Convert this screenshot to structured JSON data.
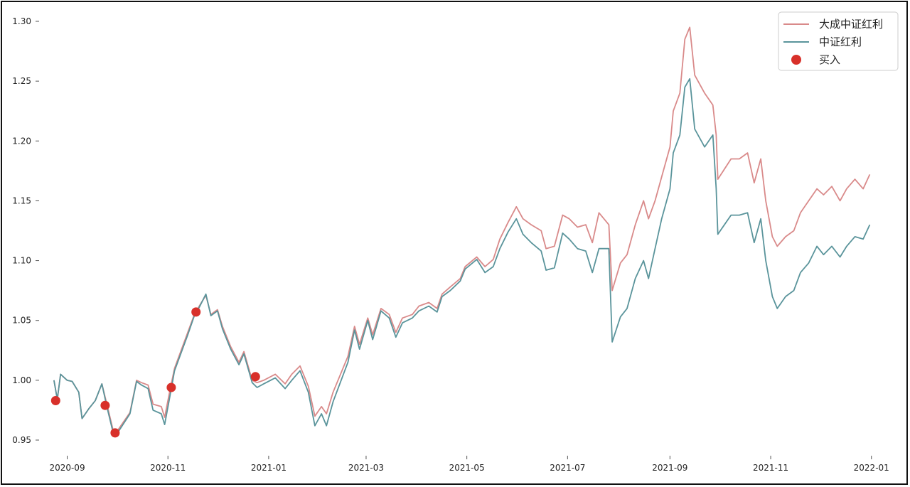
{
  "chart_data": {
    "type": "line",
    "title": "",
    "xlabel": "",
    "ylabel": "",
    "ylim": [
      0.94,
      1.3
    ],
    "xlim": [
      "2020-08-18",
      "2022-01-08"
    ],
    "grid": false,
    "legend_position": "top-right",
    "x_ticks": [
      "2020-09",
      "2020-11",
      "2021-01",
      "2021-03",
      "2021-05",
      "2021-07",
      "2021-09",
      "2021-11",
      "2022-01"
    ],
    "y_ticks": [
      "0.95",
      "1.00",
      "1.05",
      "1.10",
      "1.15",
      "1.20",
      "1.25",
      "1.30"
    ],
    "colors": {
      "fund": "#d98a8a",
      "index": "#5a949b",
      "buy": "#d8302a"
    },
    "series": [
      {
        "name": "大成中证红利",
        "type": "line",
        "points": [
          [
            "2020-08-24",
            1.0
          ],
          [
            "2020-08-26",
            0.984
          ],
          [
            "2020-08-28",
            1.005
          ],
          [
            "2020-09-01",
            1.0
          ],
          [
            "2020-09-04",
            0.999
          ],
          [
            "2020-09-08",
            0.99
          ],
          [
            "2020-09-10",
            0.968
          ],
          [
            "2020-09-14",
            0.976
          ],
          [
            "2020-09-18",
            0.983
          ],
          [
            "2020-09-22",
            0.997
          ],
          [
            "2020-09-25",
            0.98
          ],
          [
            "2020-09-29",
            0.957
          ],
          [
            "2020-10-01",
            0.957
          ],
          [
            "2020-10-09",
            0.973
          ],
          [
            "2020-10-13",
            1.0
          ],
          [
            "2020-10-16",
            0.998
          ],
          [
            "2020-10-20",
            0.996
          ],
          [
            "2020-10-23",
            0.98
          ],
          [
            "2020-10-28",
            0.978
          ],
          [
            "2020-10-30",
            0.969
          ],
          [
            "2020-11-02",
            0.99
          ],
          [
            "2020-11-05",
            1.01
          ],
          [
            "2020-11-09",
            1.025
          ],
          [
            "2020-11-13",
            1.04
          ],
          [
            "2020-11-17",
            1.055
          ],
          [
            "2020-11-20",
            1.062
          ],
          [
            "2020-11-24",
            1.071
          ],
          [
            "2020-11-27",
            1.055
          ],
          [
            "2020-12-01",
            1.059
          ],
          [
            "2020-12-04",
            1.045
          ],
          [
            "2020-12-09",
            1.028
          ],
          [
            "2020-12-14",
            1.015
          ],
          [
            "2020-12-17",
            1.024
          ],
          [
            "2020-12-22",
            1.0
          ],
          [
            "2020-12-25",
            0.998
          ],
          [
            "2020-12-29",
            1.0
          ],
          [
            "2021-01-05",
            1.005
          ],
          [
            "2021-01-11",
            0.997
          ],
          [
            "2021-01-15",
            1.005
          ],
          [
            "2021-01-20",
            1.012
          ],
          [
            "2021-01-25",
            0.995
          ],
          [
            "2021-01-29",
            0.97
          ],
          [
            "2021-02-02",
            0.978
          ],
          [
            "2021-02-05",
            0.972
          ],
          [
            "2021-02-09",
            0.99
          ],
          [
            "2021-02-18",
            1.02
          ],
          [
            "2021-02-22",
            1.045
          ],
          [
            "2021-02-25",
            1.03
          ],
          [
            "2021-03-02",
            1.052
          ],
          [
            "2021-03-05",
            1.038
          ],
          [
            "2021-03-10",
            1.06
          ],
          [
            "2021-03-15",
            1.055
          ],
          [
            "2021-03-19",
            1.04
          ],
          [
            "2021-03-23",
            1.052
          ],
          [
            "2021-03-29",
            1.055
          ],
          [
            "2021-04-02",
            1.062
          ],
          [
            "2021-04-08",
            1.065
          ],
          [
            "2021-04-13",
            1.06
          ],
          [
            "2021-04-16",
            1.072
          ],
          [
            "2021-04-21",
            1.078
          ],
          [
            "2021-04-27",
            1.085
          ],
          [
            "2021-04-30",
            1.095
          ],
          [
            "2021-05-07",
            1.103
          ],
          [
            "2021-05-12",
            1.095
          ],
          [
            "2021-05-17",
            1.101
          ],
          [
            "2021-05-21",
            1.118
          ],
          [
            "2021-05-26",
            1.132
          ],
          [
            "2021-05-31",
            1.145
          ],
          [
            "2021-06-04",
            1.135
          ],
          [
            "2021-06-09",
            1.13
          ],
          [
            "2021-06-15",
            1.125
          ],
          [
            "2021-06-18",
            1.11
          ],
          [
            "2021-06-23",
            1.112
          ],
          [
            "2021-06-28",
            1.138
          ],
          [
            "2021-07-02",
            1.135
          ],
          [
            "2021-07-07",
            1.128
          ],
          [
            "2021-07-12",
            1.13
          ],
          [
            "2021-07-16",
            1.115
          ],
          [
            "2021-07-20",
            1.14
          ],
          [
            "2021-07-26",
            1.13
          ],
          [
            "2021-07-28",
            1.075
          ],
          [
            "2021-08-02",
            1.098
          ],
          [
            "2021-08-06",
            1.105
          ],
          [
            "2021-08-11",
            1.13
          ],
          [
            "2021-08-16",
            1.15
          ],
          [
            "2021-08-19",
            1.135
          ],
          [
            "2021-08-23",
            1.15
          ],
          [
            "2021-08-27",
            1.17
          ],
          [
            "2021-09-01",
            1.195
          ],
          [
            "2021-09-03",
            1.225
          ],
          [
            "2021-09-07",
            1.24
          ],
          [
            "2021-09-10",
            1.285
          ],
          [
            "2021-09-13",
            1.295
          ],
          [
            "2021-09-16",
            1.255
          ],
          [
            "2021-09-22",
            1.24
          ],
          [
            "2021-09-27",
            1.23
          ],
          [
            "2021-09-29",
            1.205
          ],
          [
            "2021-09-30",
            1.168
          ],
          [
            "2021-10-08",
            1.185
          ],
          [
            "2021-10-13",
            1.185
          ],
          [
            "2021-10-18",
            1.19
          ],
          [
            "2021-10-22",
            1.165
          ],
          [
            "2021-10-26",
            1.185
          ],
          [
            "2021-10-29",
            1.15
          ],
          [
            "2021-11-02",
            1.12
          ],
          [
            "2021-11-05",
            1.112
          ],
          [
            "2021-11-10",
            1.12
          ],
          [
            "2021-11-15",
            1.125
          ],
          [
            "2021-11-19",
            1.14
          ],
          [
            "2021-11-24",
            1.15
          ],
          [
            "2021-11-29",
            1.16
          ],
          [
            "2021-12-03",
            1.155
          ],
          [
            "2021-12-08",
            1.162
          ],
          [
            "2021-12-13",
            1.15
          ],
          [
            "2021-12-17",
            1.16
          ],
          [
            "2021-12-22",
            1.168
          ],
          [
            "2021-12-27",
            1.16
          ],
          [
            "2021-12-31",
            1.172
          ]
        ]
      },
      {
        "name": "中证红利",
        "type": "line",
        "points": [
          [
            "2020-08-24",
            1.0
          ],
          [
            "2020-08-26",
            0.984
          ],
          [
            "2020-08-28",
            1.005
          ],
          [
            "2020-09-01",
            1.0
          ],
          [
            "2020-09-04",
            0.999
          ],
          [
            "2020-09-08",
            0.99
          ],
          [
            "2020-09-10",
            0.968
          ],
          [
            "2020-09-14",
            0.976
          ],
          [
            "2020-09-18",
            0.983
          ],
          [
            "2020-09-22",
            0.997
          ],
          [
            "2020-09-25",
            0.978
          ],
          [
            "2020-09-29",
            0.955
          ],
          [
            "2020-10-01",
            0.955
          ],
          [
            "2020-10-09",
            0.972
          ],
          [
            "2020-10-13",
            0.999
          ],
          [
            "2020-10-16",
            0.996
          ],
          [
            "2020-10-20",
            0.993
          ],
          [
            "2020-10-23",
            0.975
          ],
          [
            "2020-10-28",
            0.972
          ],
          [
            "2020-10-30",
            0.963
          ],
          [
            "2020-11-02",
            0.985
          ],
          [
            "2020-11-05",
            1.008
          ],
          [
            "2020-11-09",
            1.023
          ],
          [
            "2020-11-13",
            1.038
          ],
          [
            "2020-11-17",
            1.054
          ],
          [
            "2020-11-20",
            1.061
          ],
          [
            "2020-11-24",
            1.072
          ],
          [
            "2020-11-27",
            1.054
          ],
          [
            "2020-12-01",
            1.058
          ],
          [
            "2020-12-04",
            1.043
          ],
          [
            "2020-12-09",
            1.026
          ],
          [
            "2020-12-14",
            1.013
          ],
          [
            "2020-12-17",
            1.022
          ],
          [
            "2020-12-22",
            0.998
          ],
          [
            "2020-12-25",
            0.994
          ],
          [
            "2020-12-29",
            0.997
          ],
          [
            "2021-01-05",
            1.002
          ],
          [
            "2021-01-11",
            0.993
          ],
          [
            "2021-01-15",
            1.0
          ],
          [
            "2021-01-20",
            1.008
          ],
          [
            "2021-01-25",
            0.99
          ],
          [
            "2021-01-29",
            0.962
          ],
          [
            "2021-02-02",
            0.972
          ],
          [
            "2021-02-05",
            0.962
          ],
          [
            "2021-02-09",
            0.982
          ],
          [
            "2021-02-18",
            1.015
          ],
          [
            "2021-02-22",
            1.042
          ],
          [
            "2021-02-25",
            1.026
          ],
          [
            "2021-03-02",
            1.05
          ],
          [
            "2021-03-05",
            1.034
          ],
          [
            "2021-03-10",
            1.058
          ],
          [
            "2021-03-15",
            1.052
          ],
          [
            "2021-03-19",
            1.036
          ],
          [
            "2021-03-23",
            1.048
          ],
          [
            "2021-03-29",
            1.052
          ],
          [
            "2021-04-02",
            1.058
          ],
          [
            "2021-04-08",
            1.062
          ],
          [
            "2021-04-13",
            1.057
          ],
          [
            "2021-04-16",
            1.07
          ],
          [
            "2021-04-21",
            1.075
          ],
          [
            "2021-04-27",
            1.083
          ],
          [
            "2021-04-30",
            1.093
          ],
          [
            "2021-05-07",
            1.101
          ],
          [
            "2021-05-12",
            1.09
          ],
          [
            "2021-05-17",
            1.095
          ],
          [
            "2021-05-21",
            1.11
          ],
          [
            "2021-05-26",
            1.124
          ],
          [
            "2021-05-31",
            1.135
          ],
          [
            "2021-06-04",
            1.122
          ],
          [
            "2021-06-09",
            1.115
          ],
          [
            "2021-06-15",
            1.108
          ],
          [
            "2021-06-18",
            1.092
          ],
          [
            "2021-06-23",
            1.094
          ],
          [
            "2021-06-28",
            1.123
          ],
          [
            "2021-07-02",
            1.118
          ],
          [
            "2021-07-07",
            1.11
          ],
          [
            "2021-07-12",
            1.108
          ],
          [
            "2021-07-16",
            1.09
          ],
          [
            "2021-07-20",
            1.11
          ],
          [
            "2021-07-26",
            1.11
          ],
          [
            "2021-07-28",
            1.032
          ],
          [
            "2021-08-02",
            1.053
          ],
          [
            "2021-08-06",
            1.06
          ],
          [
            "2021-08-11",
            1.085
          ],
          [
            "2021-08-16",
            1.1
          ],
          [
            "2021-08-19",
            1.085
          ],
          [
            "2021-08-23",
            1.11
          ],
          [
            "2021-08-27",
            1.135
          ],
          [
            "2021-09-01",
            1.16
          ],
          [
            "2021-09-03",
            1.19
          ],
          [
            "2021-09-07",
            1.205
          ],
          [
            "2021-09-10",
            1.245
          ],
          [
            "2021-09-13",
            1.252
          ],
          [
            "2021-09-16",
            1.21
          ],
          [
            "2021-09-22",
            1.195
          ],
          [
            "2021-09-27",
            1.205
          ],
          [
            "2021-09-29",
            1.16
          ],
          [
            "2021-09-30",
            1.122
          ],
          [
            "2021-10-08",
            1.138
          ],
          [
            "2021-10-13",
            1.138
          ],
          [
            "2021-10-18",
            1.14
          ],
          [
            "2021-10-22",
            1.115
          ],
          [
            "2021-10-26",
            1.135
          ],
          [
            "2021-10-29",
            1.1
          ],
          [
            "2021-11-02",
            1.07
          ],
          [
            "2021-11-05",
            1.06
          ],
          [
            "2021-11-10",
            1.07
          ],
          [
            "2021-11-15",
            1.075
          ],
          [
            "2021-11-19",
            1.09
          ],
          [
            "2021-11-24",
            1.098
          ],
          [
            "2021-11-29",
            1.112
          ],
          [
            "2021-12-03",
            1.105
          ],
          [
            "2021-12-08",
            1.112
          ],
          [
            "2021-12-13",
            1.103
          ],
          [
            "2021-12-17",
            1.112
          ],
          [
            "2021-12-22",
            1.12
          ],
          [
            "2021-12-27",
            1.118
          ],
          [
            "2021-12-31",
            1.13
          ]
        ]
      },
      {
        "name": "买入",
        "type": "scatter",
        "points": [
          [
            "2020-08-25",
            0.983
          ],
          [
            "2020-09-24",
            0.979
          ],
          [
            "2020-09-30",
            0.956
          ],
          [
            "2020-11-03",
            0.994
          ],
          [
            "2020-11-18",
            1.057
          ],
          [
            "2020-12-24",
            1.003
          ]
        ]
      }
    ]
  }
}
